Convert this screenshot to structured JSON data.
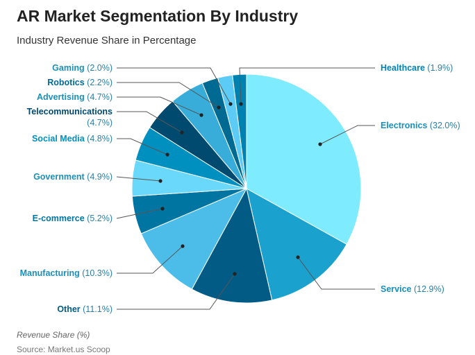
{
  "title": "AR Market Segmentation By Industry",
  "subtitle": "Industry Revenue Share in Percentage",
  "legend_note": "Revenue Share (%)",
  "source": "Source: Market.us Scoop",
  "chart_data": {
    "type": "pie",
    "title": "AR Market Segmentation By Industry",
    "subtitle": "Industry Revenue Share in Percentage",
    "unit": "%",
    "slices": [
      {
        "label": "Electronics",
        "value": 32.0,
        "display": "(32.0%)",
        "color": "#7FEBFF",
        "label_color": "#1A8FBA"
      },
      {
        "label": "Service",
        "value": 12.9,
        "display": "(12.9%)",
        "color": "#1BA1CE",
        "label_color": "#1A8FBA"
      },
      {
        "label": "Other",
        "value": 11.1,
        "display": "(11.1%)",
        "color": "#025B85",
        "label_color": "#025B85"
      },
      {
        "label": "Manufacturing",
        "value": 10.3,
        "display": "(10.3%)",
        "color": "#4BBDE8",
        "label_color": "#1A8FBA"
      },
      {
        "label": "E-commerce",
        "value": 5.2,
        "display": "(5.2%)",
        "color": "#0075A2",
        "label_color": "#0075A2"
      },
      {
        "label": "Government",
        "value": 4.9,
        "display": "(4.9%)",
        "color": "#6AD8FB",
        "label_color": "#1A8FBA"
      },
      {
        "label": "Social Media",
        "value": 4.8,
        "display": "(4.8%)",
        "color": "#0090BF",
        "label_color": "#0090BF"
      },
      {
        "label": "Telecommunications",
        "value": 4.7,
        "display": "(4.7%)",
        "color": "#004A70",
        "label_color": "#004A70"
      },
      {
        "label": "Advertising",
        "value": 4.7,
        "display": "(4.7%)",
        "color": "#38ADDA",
        "label_color": "#1A8FBA"
      },
      {
        "label": "Robotics",
        "value": 2.2,
        "display": "(2.2%)",
        "color": "#006A93",
        "label_color": "#006A93"
      },
      {
        "label": "Gaming",
        "value": 2.0,
        "display": "(2.0%)",
        "color": "#5CCBF5",
        "label_color": "#1A8FBA"
      },
      {
        "label": "Healthcare",
        "value": 1.9,
        "display": "(1.9%)",
        "color": "#0082B0",
        "label_color": "#0082B0"
      }
    ]
  }
}
